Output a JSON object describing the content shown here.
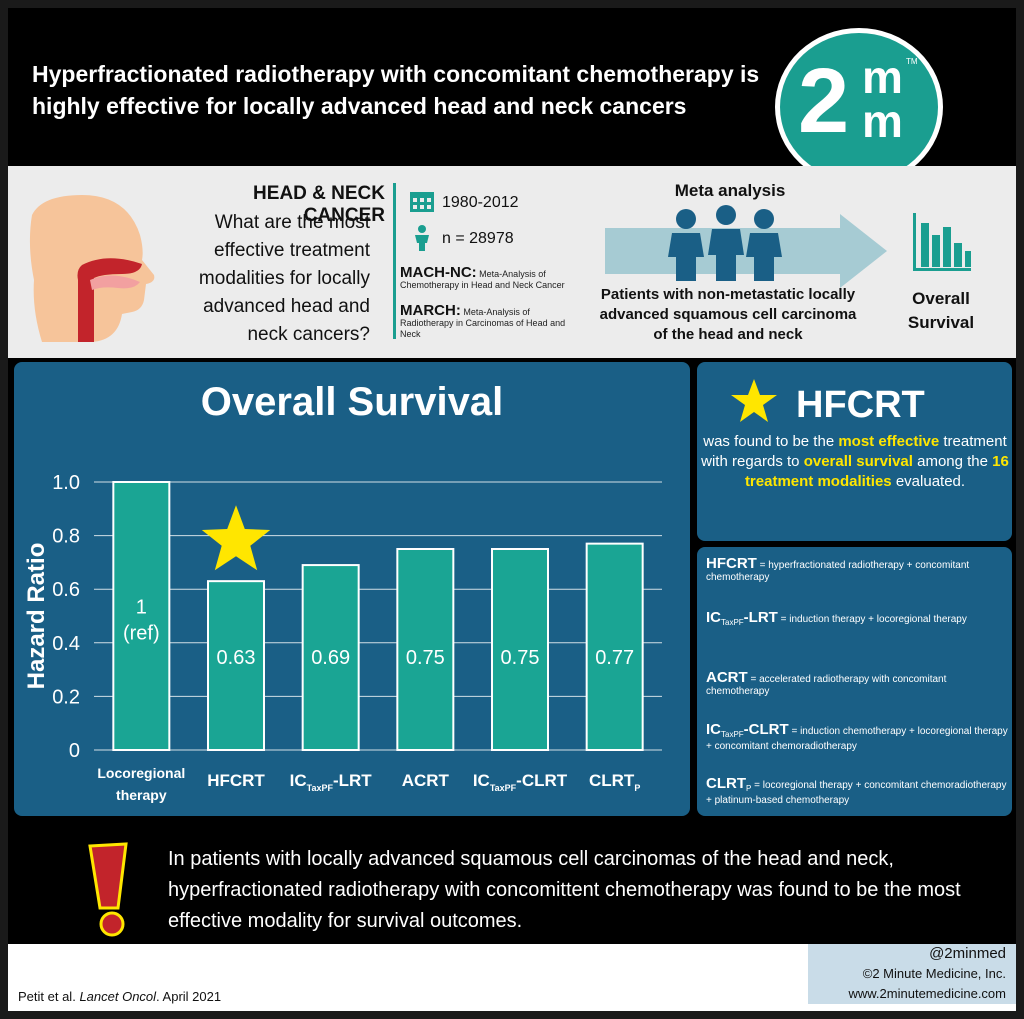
{
  "header": {
    "title": "Hyperfractionated radiotherapy with concomitant chemotherapy is highly effective for locally advanced head and neck cancers",
    "logo_big": "2",
    "logo_m1": "m",
    "logo_m2": "m",
    "logo_tm": "TM"
  },
  "info": {
    "question_title": "HEAD & NECK CANCER",
    "question": "What are the most effective treatment modalities for locally advanced head and neck cancers?",
    "years": "1980-2012",
    "n": "n = 28978",
    "trials": [
      {
        "name": "MACH-NC:",
        "desc": "Meta-Analysis of Chemotherapy in Head and Neck Cancer"
      },
      {
        "name": "MARCH:",
        "desc": "Meta-Analysis of Radiotherapy in Carcinomas of Head and Neck"
      }
    ],
    "meta_label": "Meta analysis",
    "patients": "Patients with non-metastatic locally advanced squamous cell carcinoma of the head and neck",
    "outcome": "Overall Survival"
  },
  "chart_data": {
    "type": "bar",
    "title": "Overall Survival",
    "ylabel": "Hazard Ratio",
    "xlabel": "",
    "ylim": [
      0,
      1.0
    ],
    "yticks": [
      "1.0",
      "0.8",
      "0.6",
      "0.4",
      "0.2",
      "0"
    ],
    "categories": [
      "Locoregional therapy",
      "HFCRT",
      "IC TaxPF -LRT",
      "ACRT",
      "IC TaxPF -CLRT",
      "CLRT P"
    ],
    "values": [
      1.0,
      0.63,
      0.69,
      0.75,
      0.75,
      0.77
    ],
    "data_labels": [
      "1 (ref)",
      "0.63",
      "0.69",
      "0.75",
      "0.75",
      "0.77"
    ],
    "highlight": "HFCRT",
    "grid": true,
    "colors": {
      "bar": "#1aa594",
      "bar_border": "#ffffff",
      "panel": "#1a5f86",
      "star": "#ffe600"
    }
  },
  "hfcrt": {
    "title": "HFCRT",
    "text_1": "was found to be the",
    "text_2": "most effective",
    "text_3": "treatment with regards to",
    "text_4": "overall survival",
    "text_5": "among the",
    "text_6": "16 treatment modalities",
    "text_7": "evaluated."
  },
  "glossary": [
    {
      "abbr": "HFCRT",
      "sub": "",
      "suffix": "",
      "def": "= hyperfractionated radiotherapy + concomitant chemotherapy"
    },
    {
      "abbr": "IC",
      "sub": "TaxPF",
      "suffix": "-LRT",
      "def": "= induction therapy + locoregional therapy"
    },
    {
      "abbr": "ACRT",
      "sub": "",
      "suffix": "",
      "def": "= accelerated radiotherapy with concomitant chemotherapy"
    },
    {
      "abbr": "IC",
      "sub": "TaxPF",
      "suffix": "-CLRT",
      "def": "= induction chemotherapy + locoregional therapy + concomitant chemoradiotherapy"
    },
    {
      "abbr": "CLRT",
      "sub": "P",
      "suffix": "",
      "def": "= locoregional therapy + concomitant chemoradiotherapy + platinum-based chemotherapy"
    }
  ],
  "conclusion": "In patients with locally advanced squamous cell carcinomas of the head and neck, hyperfractionated radiotherapy with concomittent chemotherapy was found to be the most effective modality for survival outcomes.",
  "footer": {
    "citation_authors": "Petit et al.",
    "citation_journal": "Lancet Oncol",
    "citation_date": ". April 2021",
    "handle": "@2minmed",
    "copyright": "©2 Minute Medicine, Inc.",
    "url": "www.2minutemedicine.com"
  }
}
